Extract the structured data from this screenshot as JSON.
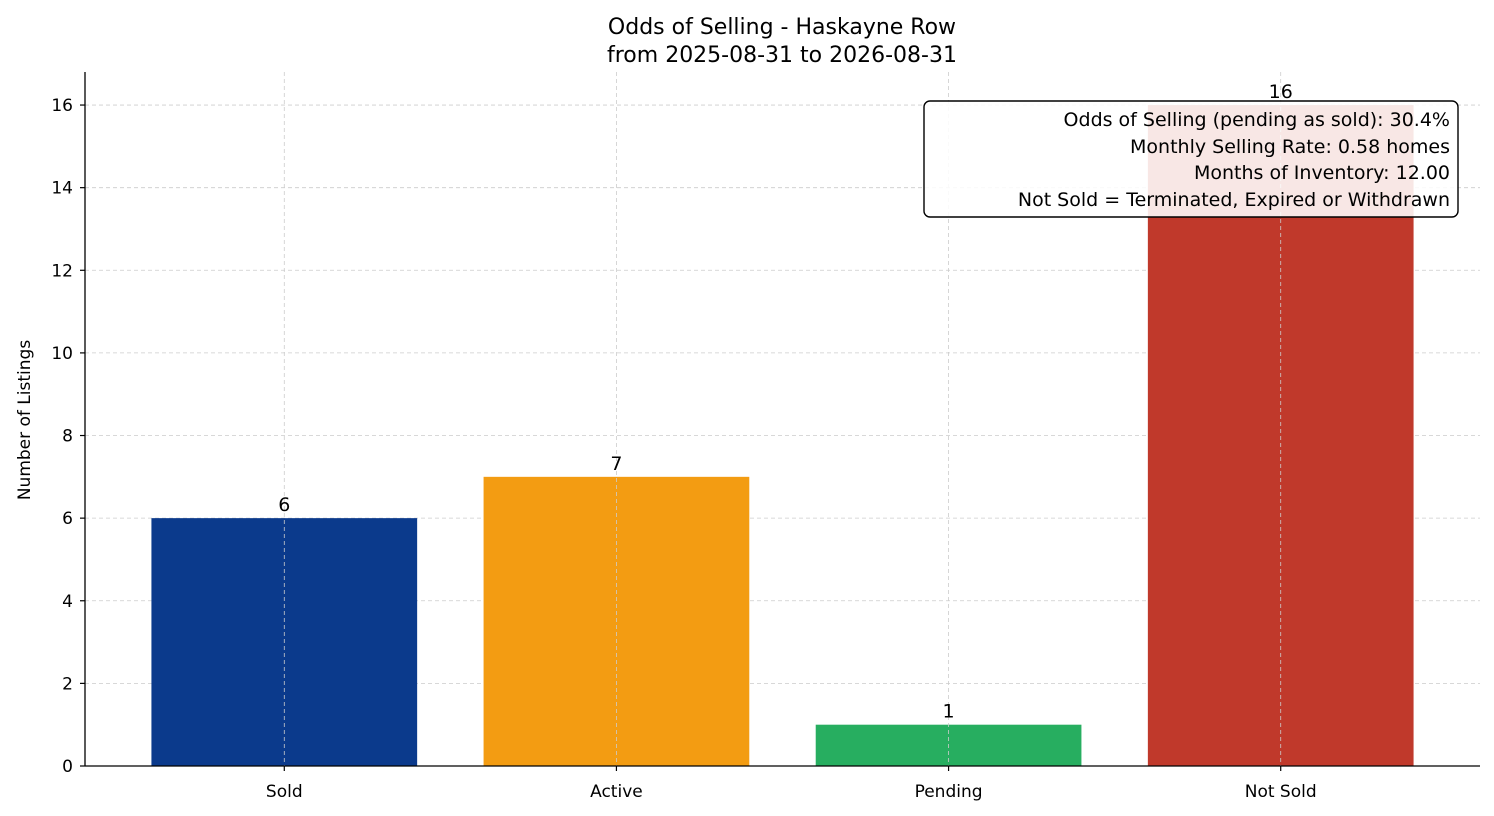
{
  "chart_data": {
    "type": "bar",
    "title": "Odds of Selling - Haskayne Row",
    "subtitle": "from 2025-08-31 to 2026-08-31",
    "xlabel": "",
    "ylabel": "Number of Listings",
    "categories": [
      "Sold",
      "Active",
      "Pending",
      "Not Sold"
    ],
    "values": [
      6,
      7,
      1,
      16
    ],
    "colors": [
      "#0b3a8c",
      "#f39c12",
      "#27ae60",
      "#c0392b"
    ],
    "data_labels": [
      "6",
      "7",
      "1",
      "16"
    ],
    "ylim": [
      0,
      16.8
    ],
    "yticks": [
      0,
      2,
      4,
      6,
      8,
      10,
      12,
      14,
      16
    ],
    "grid": true,
    "annotation": {
      "placement": "top-right",
      "lines": [
        "Odds of Selling (pending as sold): 30.4%",
        "Monthly Selling Rate: 0.58 homes",
        "Months of Inventory: 12.00",
        "Not Sold = Terminated, Expired or Withdrawn"
      ]
    }
  }
}
